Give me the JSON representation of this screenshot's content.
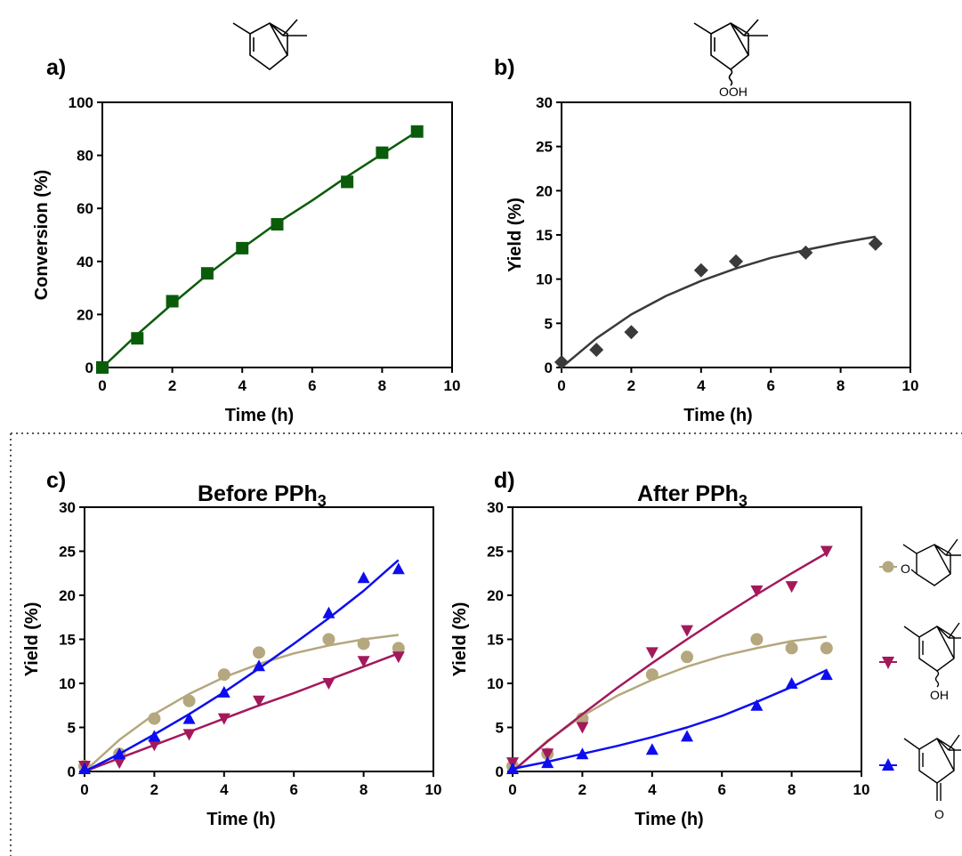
{
  "colors": {
    "green": "#0a5c0a",
    "black": "#3a3a3a",
    "tan": "#b5a77e",
    "crimson": "#a3195b",
    "blue": "#0d0df0"
  },
  "chart_data": [
    {
      "id": "a",
      "type": "scatter",
      "panel_label": "a)",
      "title": "",
      "xlabel": "Time (h)",
      "ylabel": "Conversion (%)",
      "xlim": [
        0,
        10
      ],
      "ylim": [
        0,
        100
      ],
      "xticks": [
        0,
        2,
        4,
        6,
        8,
        10
      ],
      "yticks": [
        0,
        20,
        40,
        60,
        80,
        100
      ],
      "grid": false,
      "series": [
        {
          "marker": "square",
          "color": "#0a5c0a",
          "x": [
            0,
            1,
            2,
            3,
            4,
            5,
            7,
            8,
            9
          ],
          "y": [
            0,
            11,
            25,
            35.5,
            45,
            54,
            70,
            81,
            89
          ],
          "fit": [
            [
              0,
              0
            ],
            [
              1,
              12.5
            ],
            [
              2,
              24
            ],
            [
              3,
              35
            ],
            [
              4,
              45
            ],
            [
              5,
              54.5
            ],
            [
              6,
              63
            ],
            [
              7,
              72
            ],
            [
              8,
              80.5
            ],
            [
              9,
              89
            ]
          ]
        }
      ]
    },
    {
      "id": "b",
      "type": "scatter",
      "panel_label": "b)",
      "title": "",
      "xlabel": "Time (h)",
      "ylabel": "Yield (%)",
      "xlim": [
        0,
        10
      ],
      "ylim": [
        0,
        30
      ],
      "xticks": [
        0,
        2,
        4,
        6,
        8,
        10
      ],
      "yticks": [
        0,
        5,
        10,
        15,
        20,
        25,
        30
      ],
      "grid": false,
      "series": [
        {
          "marker": "diamond",
          "color": "#3a3a3a",
          "x": [
            0,
            1,
            2,
            4,
            5,
            7,
            9
          ],
          "y": [
            0.6,
            2,
            4,
            11,
            12,
            13,
            14
          ],
          "fit": [
            [
              0,
              0
            ],
            [
              1,
              3.3
            ],
            [
              2,
              6
            ],
            [
              3,
              8.1
            ],
            [
              4,
              9.8
            ],
            [
              5,
              11.2
            ],
            [
              6,
              12.4
            ],
            [
              7,
              13.3
            ],
            [
              8,
              14.1
            ],
            [
              9,
              14.8
            ]
          ]
        }
      ]
    },
    {
      "id": "c",
      "type": "scatter",
      "panel_label": "c)",
      "title": "Before PPh",
      "title_sub": "3",
      "xlabel": "Time (h)",
      "ylabel": "Yield (%)",
      "xlim": [
        0,
        10
      ],
      "ylim": [
        0,
        30
      ],
      "xticks": [
        0,
        2,
        4,
        6,
        8,
        10
      ],
      "yticks": [
        0,
        5,
        10,
        15,
        20,
        25,
        30
      ],
      "grid": false,
      "series": [
        {
          "marker": "circle",
          "color": "#b5a77e",
          "x": [
            0,
            1,
            2,
            3,
            4,
            5,
            7,
            8,
            9
          ],
          "y": [
            0.6,
            2,
            6,
            8,
            11,
            13.5,
            15,
            14.5,
            14
          ],
          "fit": [
            [
              0,
              0
            ],
            [
              1,
              3.6
            ],
            [
              2,
              6.5
            ],
            [
              3,
              8.8
            ],
            [
              4,
              10.7
            ],
            [
              5,
              12.2
            ],
            [
              6,
              13.4
            ],
            [
              7,
              14.3
            ],
            [
              8,
              15
            ],
            [
              9,
              15.5
            ]
          ]
        },
        {
          "marker": "triangle-down",
          "color": "#a3195b",
          "x": [
            0,
            1,
            2,
            3,
            4,
            5,
            7,
            8,
            9
          ],
          "y": [
            0.6,
            1,
            3,
            4.2,
            6,
            8,
            10,
            12.5,
            13
          ],
          "fit": [
            [
              0,
              0
            ],
            [
              1,
              1.5
            ],
            [
              2,
              3
            ],
            [
              3,
              4.5
            ],
            [
              4,
              6
            ],
            [
              5,
              7.5
            ],
            [
              6,
              8.9
            ],
            [
              7,
              10.4
            ],
            [
              8,
              11.9
            ],
            [
              9,
              13.4
            ]
          ]
        },
        {
          "marker": "triangle-up",
          "color": "#0d0df0",
          "x": [
            0,
            1,
            2,
            3,
            4,
            5,
            7,
            8,
            9
          ],
          "y": [
            0.3,
            2,
            4,
            6,
            9,
            12,
            18,
            22,
            23
          ],
          "fit": [
            [
              0,
              0
            ],
            [
              1,
              2
            ],
            [
              2,
              4.2
            ],
            [
              3,
              6.5
            ],
            [
              4,
              9
            ],
            [
              5,
              11.7
            ],
            [
              6,
              14.5
            ],
            [
              7,
              17.4
            ],
            [
              8,
              20.5
            ],
            [
              9,
              24
            ]
          ]
        }
      ]
    },
    {
      "id": "d",
      "type": "scatter",
      "panel_label": "d)",
      "title": "After PPh",
      "title_sub": "3",
      "xlabel": "Time (h)",
      "ylabel": "Yield (%)",
      "xlim": [
        0,
        10
      ],
      "ylim": [
        0,
        30
      ],
      "xticks": [
        0,
        2,
        4,
        6,
        8,
        10
      ],
      "yticks": [
        0,
        5,
        10,
        15,
        20,
        25,
        30
      ],
      "grid": false,
      "series": [
        {
          "marker": "circle",
          "color": "#b5a77e",
          "x": [
            0,
            1,
            2,
            4,
            5,
            7,
            8,
            9
          ],
          "y": [
            0.6,
            2,
            6,
            11,
            13,
            15,
            14,
            14
          ],
          "fit": [
            [
              0,
              0
            ],
            [
              1,
              3.5
            ],
            [
              2,
              6.3
            ],
            [
              3,
              8.6
            ],
            [
              4,
              10.4
            ],
            [
              5,
              11.9
            ],
            [
              6,
              13.1
            ],
            [
              7,
              14
            ],
            [
              8,
              14.8
            ],
            [
              9,
              15.3
            ]
          ]
        },
        {
          "marker": "triangle-down",
          "color": "#a3195b",
          "x": [
            0,
            1,
            2,
            4,
            5,
            7,
            8,
            9
          ],
          "y": [
            1,
            2,
            5,
            13.5,
            16,
            20.5,
            21,
            25
          ],
          "fit": [
            [
              0,
              0
            ],
            [
              1,
              3.4
            ],
            [
              2,
              6.5
            ],
            [
              3,
              9.5
            ],
            [
              4,
              12.3
            ],
            [
              5,
              15
            ],
            [
              6,
              17.6
            ],
            [
              7,
              20.1
            ],
            [
              8,
              22.5
            ],
            [
              9,
              24.8
            ]
          ]
        },
        {
          "marker": "triangle-up",
          "color": "#0d0df0",
          "x": [
            0,
            1,
            2,
            4,
            5,
            7,
            8,
            9
          ],
          "y": [
            0.3,
            1,
            2,
            2.5,
            4,
            7.5,
            10,
            11
          ],
          "fit": [
            [
              0,
              0.3
            ],
            [
              1,
              1.1
            ],
            [
              2,
              2
            ],
            [
              3,
              2.9
            ],
            [
              4,
              3.9
            ],
            [
              5,
              5
            ],
            [
              6,
              6.3
            ],
            [
              7,
              7.9
            ],
            [
              8,
              9.6
            ],
            [
              9,
              11.5
            ]
          ]
        }
      ]
    }
  ],
  "structures": {
    "a_label": "",
    "b_label": "OOH",
    "legend_epoxide_label": "O",
    "legend_alcohol_label": "OH",
    "legend_ketone_label": "O"
  }
}
